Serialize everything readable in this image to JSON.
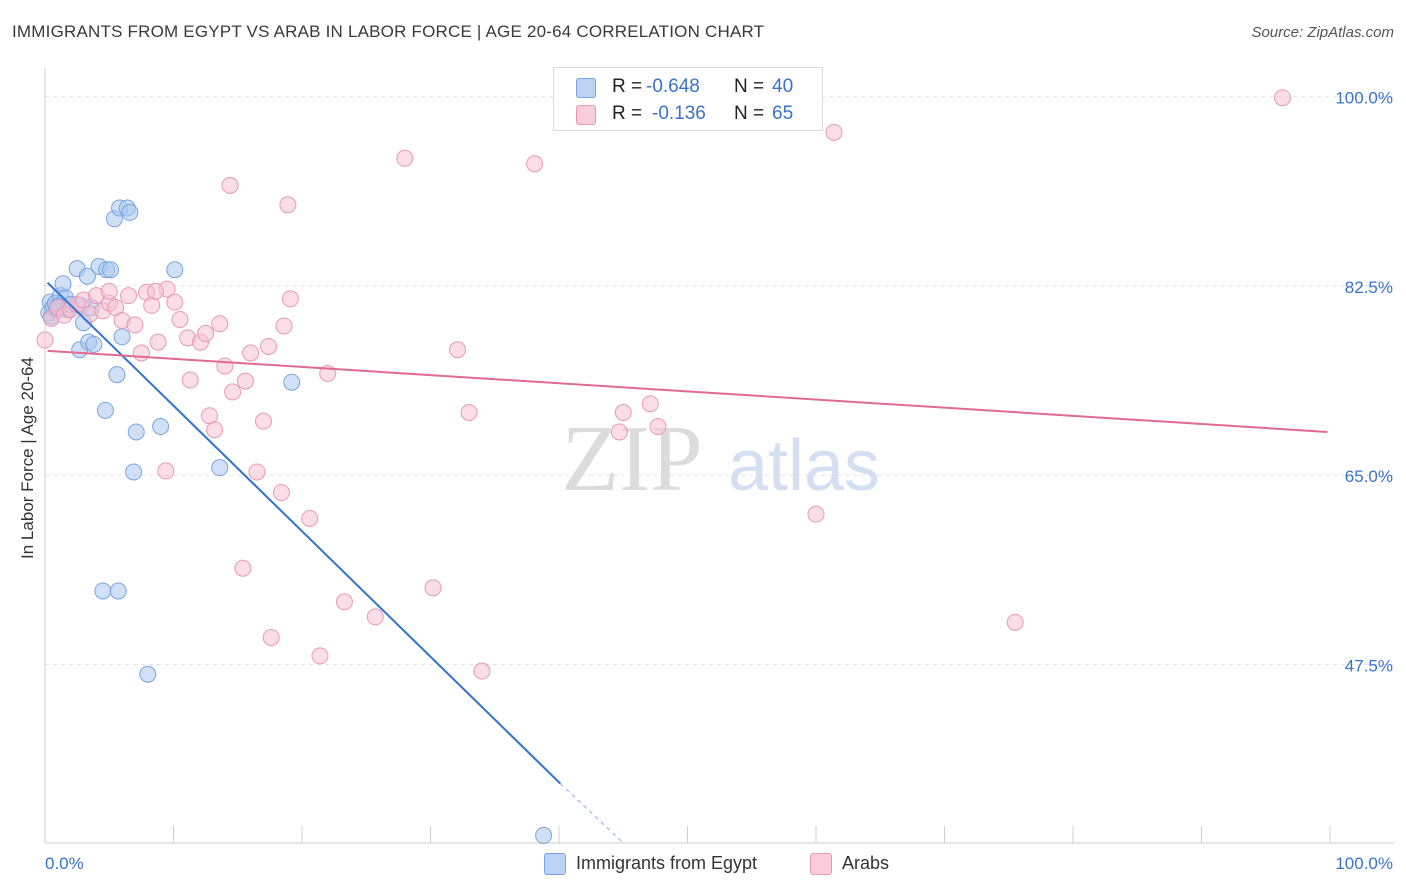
{
  "header": {
    "title": "IMMIGRANTS FROM EGYPT VS ARAB IN LABOR FORCE | AGE 20-64 CORRELATION CHART",
    "source": "Source: ZipAtlas.com"
  },
  "watermark": {
    "zip": "ZIP",
    "atlas": "atlas"
  },
  "legend": {
    "rows": [
      {
        "r_label": "R =",
        "r_value": "-0.648",
        "n_label": "N =",
        "n_value": "40"
      },
      {
        "r_label": "R =",
        "r_value": "-0.136",
        "n_label": "N =",
        "n_value": "65"
      }
    ]
  },
  "bottom_legend": {
    "series1": "Immigrants from Egypt",
    "series2": "Arabs"
  },
  "colors": {
    "blue_fill": "#a9c7f0",
    "blue_stroke": "#7aa4de",
    "blue_line": "#2f72d0",
    "pink_fill": "#f6c1d3",
    "pink_stroke": "#e899b6",
    "pink_line": "#e06a93",
    "tick_label": "#3a72c9"
  },
  "chart_data": {
    "type": "scatter",
    "title": "IMMIGRANTS FROM EGYPT VS ARAB IN LABOR FORCE | AGE 20-64 CORRELATION CHART",
    "xlabel": "",
    "ylabel": "In Labor Force | Age 20-64",
    "xlim": [
      0,
      100
    ],
    "ylim": [
      31,
      102
    ],
    "y_ticks": [
      {
        "value": 100,
        "label": "100.0%"
      },
      {
        "value": 82.5,
        "label": "82.5%"
      },
      {
        "value": 65,
        "label": "65.0%"
      },
      {
        "value": 47.5,
        "label": "47.5%"
      }
    ],
    "x_ticks": [
      {
        "value": 0,
        "label": "0.0%"
      },
      {
        "value": 100,
        "label": "100.0%"
      }
    ],
    "series": [
      {
        "name": "Immigrants from Egypt",
        "color": "blue",
        "R": -0.648,
        "N": 40,
        "trend": {
          "x0": 0.2,
          "y0": 82.8,
          "x1": 40.1,
          "y1": 36.5,
          "dash_to_x": 45.0,
          "dash_to_y": 31.0
        },
        "points": [
          [
            0.3,
            80.0
          ],
          [
            0.4,
            81.0
          ],
          [
            0.5,
            79.7
          ],
          [
            0.6,
            80.5
          ],
          [
            0.8,
            80.9
          ],
          [
            1.0,
            80.3
          ],
          [
            1.2,
            81.6
          ],
          [
            1.4,
            82.7
          ],
          [
            1.6,
            81.4
          ],
          [
            1.8,
            80.3
          ],
          [
            2.0,
            80.8
          ],
          [
            2.5,
            84.1
          ],
          [
            2.8,
            80.7
          ],
          [
            3.3,
            83.4
          ],
          [
            3.6,
            80.5
          ],
          [
            4.2,
            84.3
          ],
          [
            4.8,
            84.0
          ],
          [
            5.1,
            84.0
          ],
          [
            5.4,
            88.7
          ],
          [
            5.8,
            89.7
          ],
          [
            6.4,
            89.7
          ],
          [
            6.6,
            89.3
          ],
          [
            10.1,
            84.0
          ],
          [
            2.7,
            76.6
          ],
          [
            3.0,
            79.1
          ],
          [
            3.4,
            77.3
          ],
          [
            3.8,
            77.1
          ],
          [
            5.6,
            74.3
          ],
          [
            6.0,
            77.8
          ],
          [
            4.7,
            71.0
          ],
          [
            7.1,
            69.0
          ],
          [
            9.0,
            69.5
          ],
          [
            6.9,
            65.3
          ],
          [
            13.6,
            65.7
          ],
          [
            19.2,
            73.6
          ],
          [
            4.5,
            54.3
          ],
          [
            5.7,
            54.3
          ],
          [
            8.0,
            46.6
          ],
          [
            38.8,
            31.7
          ],
          [
            1.0,
            80.6
          ]
        ]
      },
      {
        "name": "Arabs",
        "color": "pink",
        "R": -0.136,
        "N": 65,
        "trend": {
          "x0": 0.2,
          "y0": 76.5,
          "x1": 99.8,
          "y1": 69.0
        },
        "points": [
          [
            0.0,
            77.5
          ],
          [
            0.5,
            79.5
          ],
          [
            1.0,
            80.5
          ],
          [
            1.5,
            79.8
          ],
          [
            2.0,
            80.3
          ],
          [
            2.5,
            80.8
          ],
          [
            3.0,
            81.2
          ],
          [
            3.5,
            79.9
          ],
          [
            4.0,
            81.6
          ],
          [
            4.5,
            80.2
          ],
          [
            5.0,
            80.9
          ],
          [
            5.5,
            80.5
          ],
          [
            6.0,
            79.3
          ],
          [
            6.5,
            81.6
          ],
          [
            7.0,
            78.9
          ],
          [
            7.5,
            76.3
          ],
          [
            7.9,
            81.9
          ],
          [
            8.3,
            80.7
          ],
          [
            8.8,
            77.3
          ],
          [
            9.5,
            82.2
          ],
          [
            10.1,
            81.0
          ],
          [
            10.5,
            79.4
          ],
          [
            11.1,
            77.7
          ],
          [
            12.1,
            77.3
          ],
          [
            12.5,
            78.1
          ],
          [
            13.6,
            79.0
          ],
          [
            14.0,
            75.1
          ],
          [
            14.6,
            72.7
          ],
          [
            15.6,
            73.7
          ],
          [
            16.0,
            76.3
          ],
          [
            17.4,
            76.9
          ],
          [
            18.6,
            78.8
          ],
          [
            19.1,
            81.3
          ],
          [
            11.3,
            73.8
          ],
          [
            12.8,
            70.5
          ],
          [
            13.2,
            69.2
          ],
          [
            17.0,
            70.0
          ],
          [
            16.5,
            65.3
          ],
          [
            18.4,
            63.4
          ],
          [
            20.6,
            61.0
          ],
          [
            22.0,
            74.4
          ],
          [
            9.4,
            65.4
          ],
          [
            15.4,
            56.4
          ],
          [
            23.3,
            53.3
          ],
          [
            25.7,
            51.9
          ],
          [
            30.2,
            54.6
          ],
          [
            21.4,
            48.3
          ],
          [
            34.0,
            46.9
          ],
          [
            32.1,
            76.6
          ],
          [
            33.0,
            70.8
          ],
          [
            44.7,
            69.0
          ],
          [
            45.0,
            70.8
          ],
          [
            47.1,
            71.6
          ],
          [
            47.7,
            69.5
          ],
          [
            17.6,
            50.0
          ],
          [
            14.4,
            91.8
          ],
          [
            18.9,
            90.0
          ],
          [
            28.0,
            94.3
          ],
          [
            38.1,
            93.8
          ],
          [
            61.4,
            96.7
          ],
          [
            96.3,
            99.9
          ],
          [
            60.0,
            61.4
          ],
          [
            75.5,
            51.4
          ],
          [
            5.0,
            82.0
          ],
          [
            8.6,
            82.0
          ]
        ]
      }
    ]
  }
}
